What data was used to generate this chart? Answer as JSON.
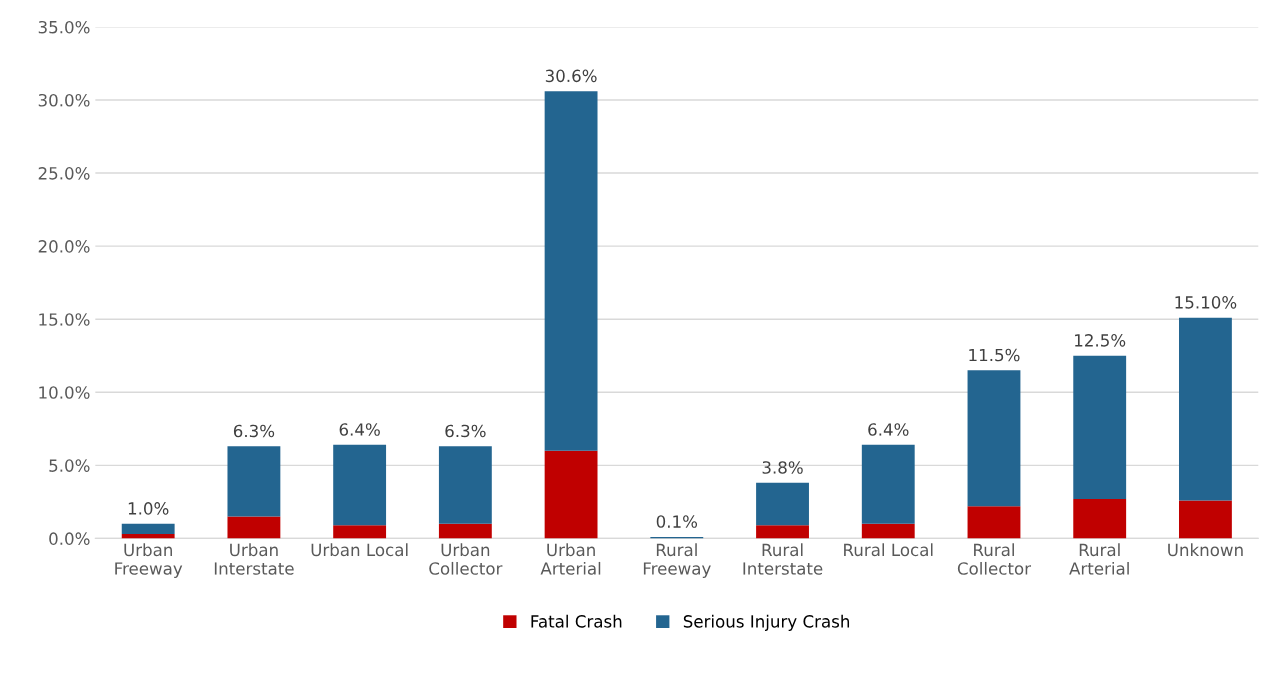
{
  "chart_data": {
    "type": "bar",
    "stacked": true,
    "categories": [
      "Urban\nFreeway",
      "Urban\nInterstate",
      "Urban Local",
      "Urban\nCollector",
      "Urban\nArterial",
      "Rural\nFreeway",
      "Rural\nInterstate",
      "Rural Local",
      "Rural\nCollector",
      "Rural\nArterial",
      "Unknown"
    ],
    "series": [
      {
        "name": "Fatal Crash",
        "color": "#c00000",
        "values": [
          0.3,
          1.5,
          0.9,
          1.0,
          6.0,
          0.0,
          0.9,
          1.0,
          2.2,
          2.7,
          2.6
        ]
      },
      {
        "name": "Serious Injury Crash",
        "color": "#236590",
        "values": [
          0.7,
          4.8,
          5.5,
          5.3,
          24.6,
          0.1,
          2.9,
          5.4,
          9.3,
          9.8,
          12.5
        ]
      }
    ],
    "totals": [
      "1.0%",
      "6.3%",
      "6.4%",
      "6.3%",
      "30.6%",
      "0.1%",
      "3.8%",
      "6.4%",
      "11.5%",
      "12.5%",
      "15.10%"
    ],
    "ylim": [
      0,
      35
    ],
    "yticks": [
      {
        "value": 0,
        "label": "0.0%"
      },
      {
        "value": 5,
        "label": "5.0%"
      },
      {
        "value": 10,
        "label": "10.0%"
      },
      {
        "value": 15,
        "label": "15.0%"
      },
      {
        "value": 20,
        "label": "20.0%"
      },
      {
        "value": 25,
        "label": "25.0%"
      },
      {
        "value": 30,
        "label": "30.0%"
      },
      {
        "value": 35,
        "label": "35.0%"
      }
    ],
    "grid": "y",
    "legend": "bottom"
  }
}
